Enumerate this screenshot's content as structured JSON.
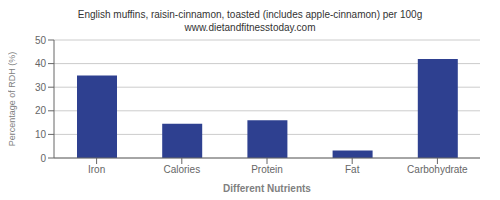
{
  "chart_data": {
    "type": "bar",
    "title": "English muffins, raisin-cinnamon, toasted (includes apple-cinnamon) per 100g",
    "subtitle": "www.dietandfitnesstoday.com",
    "categories": [
      "Iron",
      "Calories",
      "Protein",
      "Fat",
      "Carbohydrate"
    ],
    "values": [
      35,
      14.5,
      16,
      3.2,
      42
    ],
    "color": "#2e4090",
    "xlabel": "Different Nutrients",
    "ylabel": "Percentage of RDH (%)",
    "ylim": [
      0,
      50
    ],
    "yticks": [
      0,
      10,
      20,
      30,
      40,
      50
    ],
    "grid": true
  }
}
